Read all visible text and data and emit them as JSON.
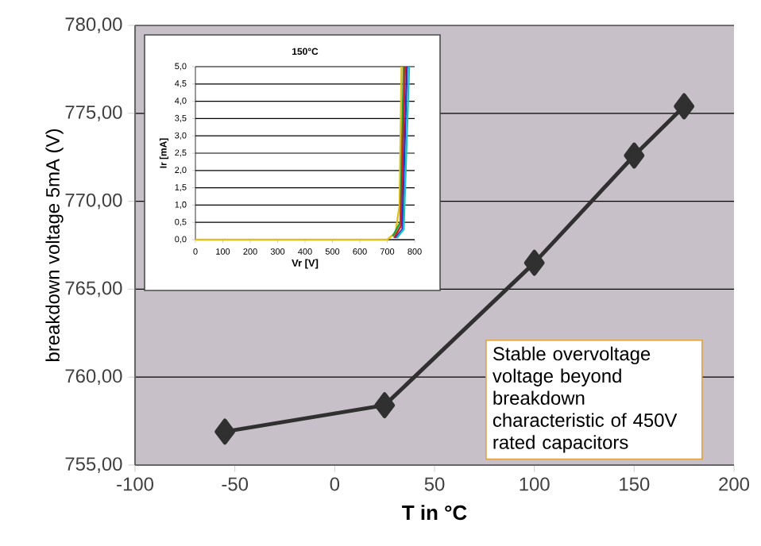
{
  "chart_data": [
    {
      "type": "line",
      "xlabel": "T in °C",
      "ylabel": "breakdown voltage 5mA (V)",
      "x": [
        -55,
        25,
        100,
        150,
        175
      ],
      "series": [
        {
          "color": "#303030",
          "values": [
            756.9,
            758.4,
            766.5,
            772.6,
            775.4
          ]
        }
      ],
      "xlim": [
        -100,
        200
      ],
      "xticks": [
        -100,
        -50,
        0,
        50,
        100,
        150,
        200
      ],
      "ylim": [
        755,
        780
      ],
      "yticks": [
        {
          "value": 755,
          "label": "755,00"
        },
        {
          "value": 760,
          "label": "760,00"
        },
        {
          "value": 765,
          "label": "765,00"
        },
        {
          "value": 770,
          "label": "770,00"
        },
        {
          "value": 775,
          "label": "775,00"
        },
        {
          "value": 780,
          "label": "780,00"
        }
      ],
      "grid": "y",
      "marker": "diamond",
      "line_style": "solid",
      "annotations": [
        "Stable overvoltage voltage beyond breakdown characteristic of 450V rated capacitors"
      ]
    },
    {
      "type": "line",
      "title": "150°C",
      "xlabel": "Vr [V]",
      "ylabel": "Ir [mA]",
      "series": [
        {
          "color": "#e0c020",
          "x": [
            0,
            100,
            200,
            300,
            400,
            500,
            600,
            700,
            730,
            745,
            752
          ],
          "values": [
            0,
            0,
            0,
            0,
            0,
            0,
            0,
            0,
            0.2,
            1.0,
            5.0
          ]
        },
        {
          "color": "#20a040",
          "x": [
            720,
            748,
            760
          ],
          "values": [
            0.1,
            0.5,
            5.0
          ]
        },
        {
          "color": "#d02020",
          "x": [
            725,
            750,
            765
          ],
          "values": [
            0.05,
            0.4,
            5.0
          ]
        },
        {
          "color": "#3030c0",
          "x": [
            730,
            755,
            772
          ],
          "values": [
            0.05,
            0.3,
            5.0
          ]
        },
        {
          "color": "#20c0c0",
          "x": [
            735,
            760,
            780
          ],
          "values": [
            0.05,
            0.3,
            5.0
          ]
        }
      ],
      "xlim": [
        0,
        800
      ],
      "xticks": [
        0,
        100,
        200,
        300,
        400,
        500,
        600,
        700,
        800
      ],
      "ylim": [
        0,
        5
      ],
      "yticks": [
        {
          "value": 0,
          "label": "0,0"
        },
        {
          "value": 0.5,
          "label": "0,5"
        },
        {
          "value": 1,
          "label": "1,0"
        },
        {
          "value": 1.5,
          "label": "1,5"
        },
        {
          "value": 2,
          "label": "2,0"
        },
        {
          "value": 2.5,
          "label": "2,5"
        },
        {
          "value": 3,
          "label": "3,0"
        },
        {
          "value": 3.5,
          "label": "3,5"
        },
        {
          "value": 4,
          "label": "4,0"
        },
        {
          "value": 4.5,
          "label": "4,5"
        },
        {
          "value": 5,
          "label": "5,0"
        }
      ],
      "grid": "y",
      "marker": "none",
      "line_style": "solid"
    }
  ]
}
